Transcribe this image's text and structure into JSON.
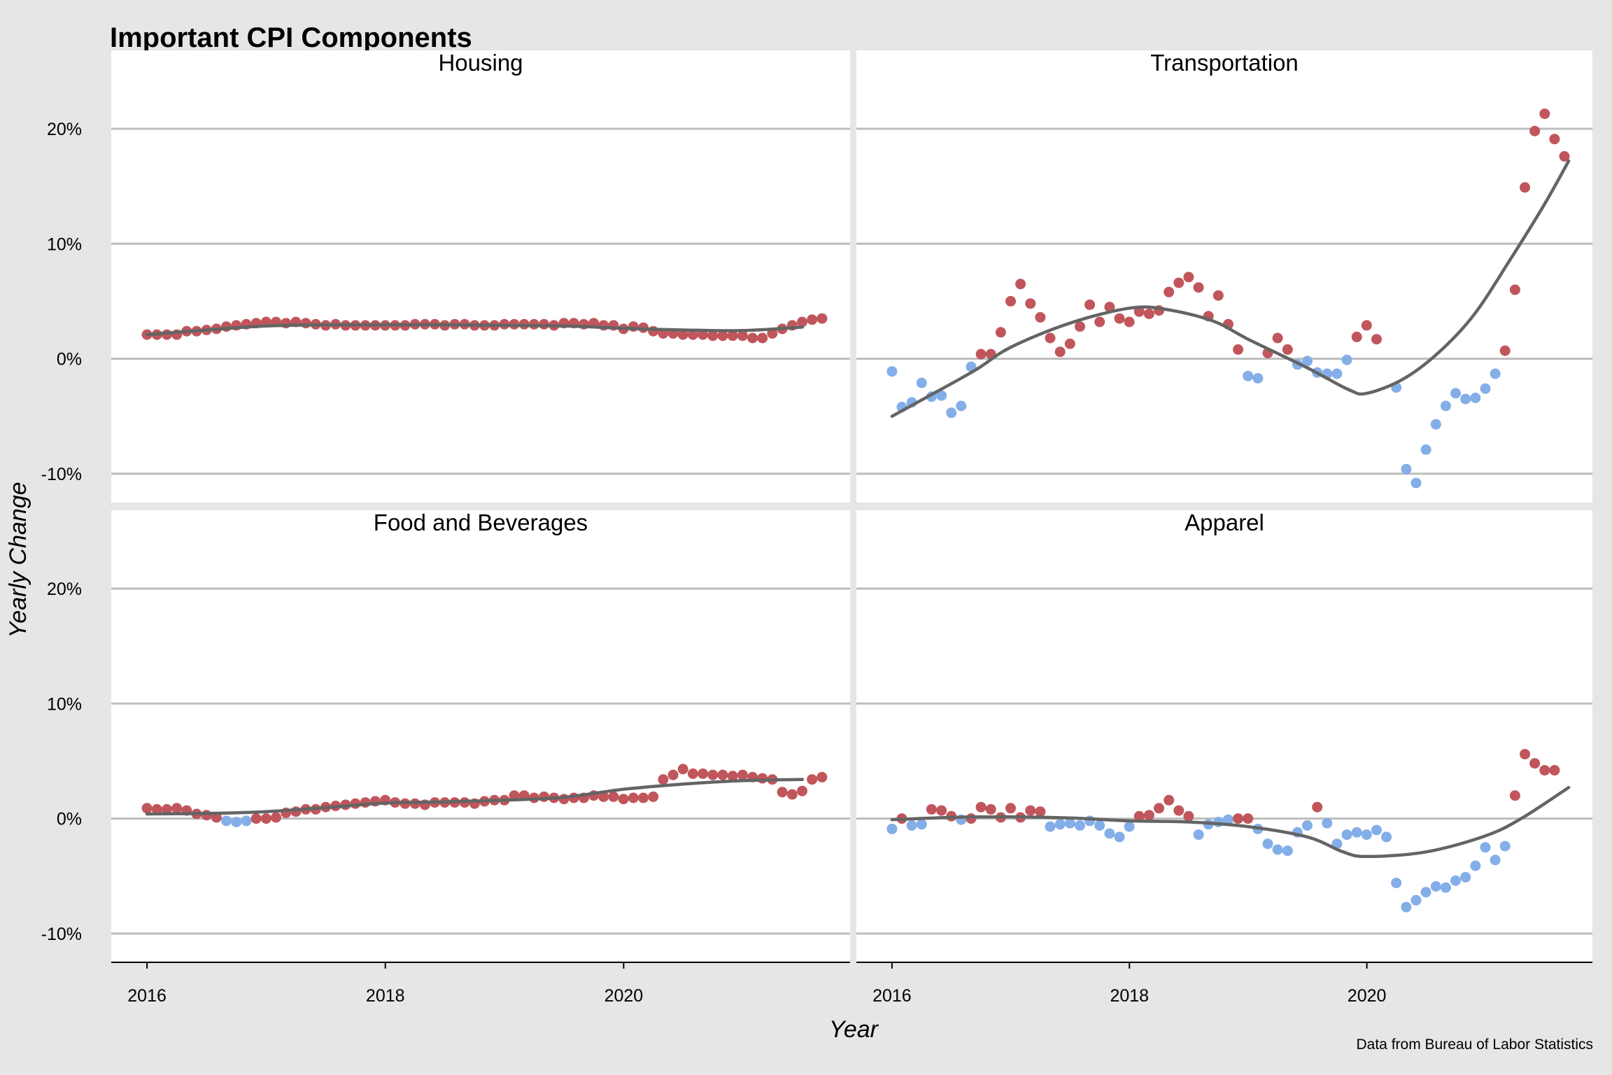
{
  "figure": {
    "title": "Important CPI Components",
    "xlabel": "Year",
    "ylabel": "Yearly Change",
    "caption": "Data from Bureau of Labor Statistics",
    "colors": {
      "background": "#e6e6e6",
      "panel": "#ffffff",
      "grid": "#bdbdbd",
      "positive": "#c0565c",
      "negative": "#84aee8",
      "trend": "#646464"
    }
  },
  "chart_data": [
    {
      "type": "scatter",
      "panel": "Housing",
      "x_ticks": [
        "2016",
        "2018",
        "2020"
      ],
      "y_ticks": [
        "20%",
        "10%",
        "0%",
        "-10%"
      ],
      "xlim": [
        2015.7,
        2021.9
      ],
      "ylim": [
        -12.5,
        24.5
      ],
      "grid": true,
      "start": 2016.0,
      "step": 0.0833,
      "values": [
        2.1,
        2.1,
        2.1,
        2.1,
        2.4,
        2.4,
        2.5,
        2.6,
        2.8,
        2.9,
        3.0,
        3.1,
        3.2,
        3.2,
        3.1,
        3.2,
        3.1,
        3.0,
        2.9,
        3.0,
        2.9,
        2.9,
        2.9,
        2.9,
        2.9,
        2.9,
        2.9,
        3.0,
        3.0,
        3.0,
        2.9,
        3.0,
        3.0,
        2.9,
        2.9,
        2.9,
        3.0,
        3.0,
        3.0,
        3.0,
        3.0,
        2.9,
        3.1,
        3.1,
        3.0,
        3.1,
        2.9,
        2.9,
        2.6,
        2.8,
        2.7,
        2.4,
        2.2,
        2.2,
        2.1,
        2.1,
        2.1,
        2.0,
        2.0,
        2.0,
        2.0,
        1.8,
        1.8,
        2.2,
        2.6,
        2.9,
        3.2,
        3.4,
        3.5
      ],
      "trend": [
        [
          2016.0,
          2.1
        ],
        [
          2016.5,
          2.5
        ],
        [
          2017.0,
          2.85
        ],
        [
          2017.5,
          2.95
        ],
        [
          2018.0,
          2.95
        ],
        [
          2018.5,
          2.95
        ],
        [
          2019.0,
          2.9
        ],
        [
          2019.5,
          2.85
        ],
        [
          2020.0,
          2.65
        ],
        [
          2020.5,
          2.5
        ],
        [
          2021.0,
          2.45
        ],
        [
          2021.5,
          2.75
        ]
      ]
    },
    {
      "type": "scatter",
      "panel": "Transportation",
      "x_ticks": [
        "2016",
        "2018",
        "2020"
      ],
      "y_ticks": [
        "20%",
        "10%",
        "0%",
        "-10%"
      ],
      "xlim": [
        2015.7,
        2021.9
      ],
      "ylim": [
        -12.5,
        24.5
      ],
      "grid": true,
      "start": 2016.0,
      "step": 0.0833,
      "values": [
        -1.1,
        -4.2,
        -3.8,
        -2.1,
        -3.3,
        -3.2,
        -4.7,
        -4.1,
        -0.7,
        0.4,
        0.4,
        2.3,
        5.0,
        6.5,
        4.8,
        3.6,
        1.8,
        0.6,
        1.3,
        2.8,
        4.7,
        3.2,
        4.5,
        3.5,
        3.2,
        4.1,
        3.9,
        4.2,
        5.8,
        6.6,
        7.1,
        6.2,
        3.7,
        5.5,
        3.0,
        0.8,
        -1.5,
        -1.7,
        0.5,
        1.8,
        0.8,
        -0.5,
        -0.2,
        -1.2,
        -1.3,
        -1.3,
        -0.1,
        1.9,
        2.9,
        1.7,
        null,
        -2.5,
        -9.6,
        -10.8,
        -7.9,
        -5.7,
        -4.1,
        -3.0,
        -3.5,
        -3.4,
        -2.6,
        -1.3,
        0.7,
        6.0,
        14.9,
        19.8,
        21.3,
        19.1,
        17.6
      ],
      "trend": [
        [
          2016.0,
          -5.0
        ],
        [
          2016.3,
          -3.3
        ],
        [
          2016.7,
          -1.0
        ],
        [
          2017.0,
          1.0
        ],
        [
          2017.5,
          3.1
        ],
        [
          2018.0,
          4.4
        ],
        [
          2018.3,
          4.3
        ],
        [
          2018.7,
          3.3
        ],
        [
          2019.0,
          1.7
        ],
        [
          2019.5,
          -0.8
        ],
        [
          2019.85,
          -2.7
        ],
        [
          2020.0,
          -3.0
        ],
        [
          2020.3,
          -1.8
        ],
        [
          2020.6,
          0.5
        ],
        [
          2020.9,
          3.8
        ],
        [
          2021.2,
          8.5
        ],
        [
          2021.5,
          13.5
        ],
        [
          2021.7,
          17.2
        ]
      ]
    },
    {
      "type": "scatter",
      "panel": "Food and Beverages",
      "x_ticks": [
        "2016",
        "2018",
        "2020"
      ],
      "y_ticks": [
        "20%",
        "10%",
        "0%",
        "-10%"
      ],
      "xlim": [
        2015.7,
        2021.9
      ],
      "ylim": [
        -12.5,
        24.5
      ],
      "grid": true,
      "start": 2016.0,
      "step": 0.0833,
      "values": [
        0.9,
        0.8,
        0.8,
        0.9,
        0.7,
        0.4,
        0.3,
        0.1,
        -0.2,
        -0.3,
        -0.2,
        0.0,
        0.0,
        0.1,
        0.5,
        0.6,
        0.8,
        0.8,
        1.0,
        1.1,
        1.2,
        1.3,
        1.4,
        1.5,
        1.6,
        1.4,
        1.3,
        1.3,
        1.2,
        1.4,
        1.4,
        1.4,
        1.4,
        1.3,
        1.5,
        1.6,
        1.6,
        2.0,
        2.0,
        1.8,
        1.9,
        1.8,
        1.7,
        1.8,
        1.8,
        2.0,
        1.9,
        1.9,
        1.7,
        1.8,
        1.8,
        1.9,
        3.4,
        3.8,
        4.3,
        3.9,
        3.9,
        3.8,
        3.8,
        3.7,
        3.8,
        3.6,
        3.5,
        3.4,
        2.3,
        2.1,
        2.4,
        3.4,
        3.6
      ],
      "trend": [
        [
          2016.0,
          0.4
        ],
        [
          2016.5,
          0.45
        ],
        [
          2017.0,
          0.6
        ],
        [
          2017.5,
          0.95
        ],
        [
          2018.0,
          1.35
        ],
        [
          2018.5,
          1.45
        ],
        [
          2019.0,
          1.6
        ],
        [
          2019.5,
          1.85
        ],
        [
          2020.0,
          2.55
        ],
        [
          2020.5,
          3.0
        ],
        [
          2021.0,
          3.3
        ],
        [
          2021.5,
          3.4
        ]
      ]
    },
    {
      "type": "scatter",
      "panel": "Apparel",
      "x_ticks": [
        "2016",
        "2018",
        "2020"
      ],
      "y_ticks": [
        "20%",
        "10%",
        "0%",
        "-10%"
      ],
      "xlim": [
        2015.7,
        2021.9
      ],
      "ylim": [
        -12.5,
        24.5
      ],
      "grid": true,
      "start": 2016.0,
      "step": 0.0833,
      "values": [
        -0.9,
        0.0,
        -0.6,
        -0.5,
        0.8,
        0.7,
        0.2,
        -0.1,
        0.0,
        1.0,
        0.8,
        0.1,
        0.9,
        0.1,
        0.7,
        0.6,
        -0.7,
        -0.5,
        -0.4,
        -0.6,
        -0.2,
        -0.6,
        -1.3,
        -1.6,
        -0.7,
        0.2,
        0.3,
        0.9,
        1.6,
        0.7,
        0.2,
        -1.4,
        -0.5,
        -0.3,
        -0.1,
        0.0,
        0.0,
        -0.9,
        -2.2,
        -2.7,
        -2.8,
        -1.2,
        -0.6,
        1.0,
        -0.4,
        -2.2,
        -1.4,
        -1.2,
        -1.4,
        -1.0,
        -1.6,
        -5.6,
        -7.7,
        -7.1,
        -6.4,
        -5.9,
        -6.0,
        -5.4,
        -5.1,
        -4.1,
        -2.5,
        -3.6,
        -2.4,
        2.0,
        5.6,
        4.8,
        4.2,
        4.2
      ],
      "trend": [
        [
          2016.0,
          -0.1
        ],
        [
          2016.5,
          0.1
        ],
        [
          2017.0,
          0.15
        ],
        [
          2017.5,
          0.05
        ],
        [
          2018.0,
          -0.2
        ],
        [
          2018.5,
          -0.3
        ],
        [
          2019.0,
          -0.7
        ],
        [
          2019.5,
          -1.6
        ],
        [
          2019.8,
          -2.9
        ],
        [
          2020.0,
          -3.3
        ],
        [
          2020.5,
          -2.9
        ],
        [
          2021.0,
          -1.5
        ],
        [
          2021.3,
          0.0
        ],
        [
          2021.7,
          2.7
        ]
      ]
    }
  ]
}
